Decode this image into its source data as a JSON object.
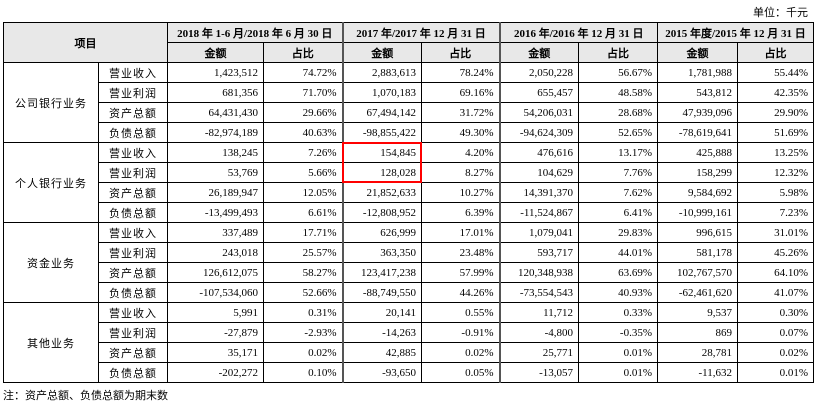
{
  "unit_label": "单位：千元",
  "header": {
    "item": "项目",
    "periods": [
      "2018 年 1-6 月/2018 年 6 月 30 日",
      "2017 年/2017 年 12 月 31 日",
      "2016 年/2016 年 12 月 31 日",
      "2015 年度/2015 年 12 月 31 日"
    ],
    "amount": "金额",
    "ratio": "占比"
  },
  "segments": [
    {
      "name": "公司银行业务",
      "rows": [
        {
          "item": "营业收入",
          "values": [
            "1,423,512",
            "74.72%",
            "2,883,613",
            "78.24%",
            "2,050,228",
            "56.67%",
            "1,781,988",
            "55.44%"
          ]
        },
        {
          "item": "营业利润",
          "values": [
            "681,356",
            "71.70%",
            "1,070,183",
            "69.16%",
            "655,457",
            "48.58%",
            "543,812",
            "42.35%"
          ]
        },
        {
          "item": "资产总额",
          "values": [
            "64,431,430",
            "29.66%",
            "67,494,142",
            "31.72%",
            "54,206,031",
            "28.68%",
            "47,939,096",
            "29.90%"
          ]
        },
        {
          "item": "负债总额",
          "values": [
            "-82,974,189",
            "40.63%",
            "-98,855,422",
            "49.30%",
            "-94,624,309",
            "52.65%",
            "-78,619,641",
            "51.69%"
          ]
        }
      ]
    },
    {
      "name": "个人银行业务",
      "rows": [
        {
          "item": "营业收入",
          "values": [
            "138,245",
            "7.26%",
            "154,845",
            "4.20%",
            "476,616",
            "13.17%",
            "425,888",
            "13.25%"
          ]
        },
        {
          "item": "营业利润",
          "values": [
            "53,769",
            "5.66%",
            "128,028",
            "8.27%",
            "104,629",
            "7.76%",
            "158,299",
            "12.32%"
          ]
        },
        {
          "item": "资产总额",
          "values": [
            "26,189,947",
            "12.05%",
            "21,852,633",
            "10.27%",
            "14,391,370",
            "7.62%",
            "9,584,692",
            "5.98%"
          ]
        },
        {
          "item": "负债总额",
          "values": [
            "-13,499,493",
            "6.61%",
            "-12,808,952",
            "6.39%",
            "-11,524,867",
            "6.41%",
            "-10,999,161",
            "7.23%"
          ]
        }
      ]
    },
    {
      "name": "资金业务",
      "rows": [
        {
          "item": "营业收入",
          "values": [
            "337,489",
            "17.71%",
            "626,999",
            "17.01%",
            "1,079,041",
            "29.83%",
            "996,615",
            "31.01%"
          ]
        },
        {
          "item": "营业利润",
          "values": [
            "243,018",
            "25.57%",
            "363,350",
            "23.48%",
            "593,717",
            "44.01%",
            "581,178",
            "45.26%"
          ]
        },
        {
          "item": "资产总额",
          "values": [
            "126,612,075",
            "58.27%",
            "123,417,238",
            "57.99%",
            "120,348,938",
            "63.69%",
            "102,767,570",
            "64.10%"
          ]
        },
        {
          "item": "负债总额",
          "values": [
            "-107,534,060",
            "52.66%",
            "-88,749,550",
            "44.26%",
            "-73,554,543",
            "40.93%",
            "-62,461,620",
            "41.07%"
          ]
        }
      ]
    },
    {
      "name": "其他业务",
      "rows": [
        {
          "item": "营业收入",
          "values": [
            "5,991",
            "0.31%",
            "20,141",
            "0.55%",
            "11,712",
            "0.33%",
            "9,537",
            "0.30%"
          ]
        },
        {
          "item": "营业利润",
          "values": [
            "-27,879",
            "-2.93%",
            "-14,263",
            "-0.91%",
            "-4,800",
            "-0.35%",
            "869",
            "0.07%"
          ]
        },
        {
          "item": "资产总额",
          "values": [
            "35,171",
            "0.02%",
            "42,885",
            "0.02%",
            "25,771",
            "0.01%",
            "28,781",
            "0.02%"
          ]
        },
        {
          "item": "负债总额",
          "values": [
            "-202,272",
            "0.10%",
            "-93,650",
            "0.05%",
            "-13,057",
            "0.01%",
            "-11,632",
            "0.01%"
          ]
        }
      ]
    }
  ],
  "highlight_color": "#ff0000",
  "note": "注：资产总额、负债总额为期末数"
}
